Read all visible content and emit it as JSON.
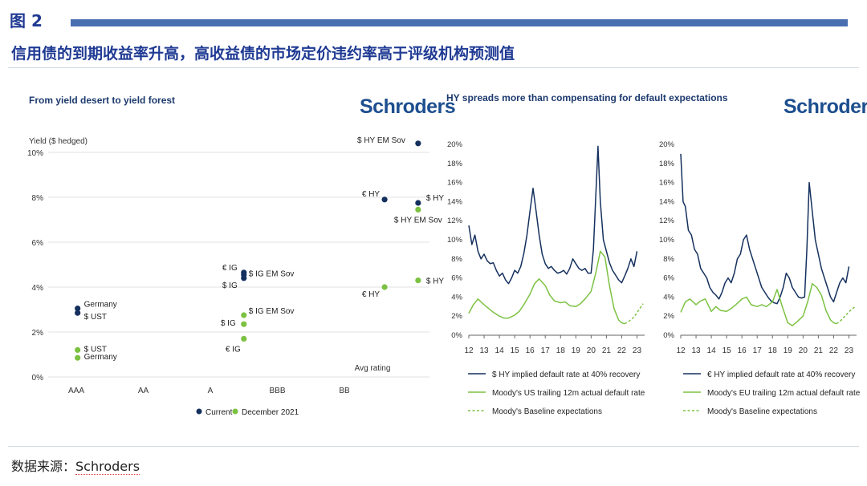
{
  "header": {
    "figure_label": "图 2",
    "headline": "信用债的到期收益率升高，高收益债的市场定价违约率高于评级机构预测值"
  },
  "footer": {
    "source_prefix": "数据来源：",
    "source_name": "Schroders"
  },
  "colors": {
    "navy": "#15305e",
    "green": "#7cc242",
    "title_blue": "#1f3a93",
    "bar_blue": "#4a6fb0"
  },
  "chart_data": [
    {
      "type": "scatter",
      "title": "From yield desert to yield forest",
      "brand": "Schroders",
      "ylabel": "Yield ($ hedged)",
      "xlabel": "Avg rating",
      "categories": [
        "AAA",
        "AA",
        "A",
        "BBB",
        "BB"
      ],
      "ylim": [
        0,
        10
      ],
      "yticks": [
        "0%",
        "2%",
        "4%",
        "6%",
        "8%",
        "10%"
      ],
      "grid": true,
      "legend": {
        "position": "bottom",
        "entries": [
          "Current",
          "December 2021"
        ]
      },
      "series": [
        {
          "name": "Current",
          "points": [
            {
              "label": "Germany",
              "x": 0.02,
              "y": 3.05
            },
            {
              "label": "$ UST",
              "x": 0.02,
              "y": 2.85
            },
            {
              "label": "€ IG",
              "x": 2.5,
              "y": 4.65
            },
            {
              "label": "$ IG EM Sov",
              "x": 2.5,
              "y": 4.55
            },
            {
              "label": "$ IG",
              "x": 2.5,
              "y": 4.4
            },
            {
              "label": "$ HY EM Sov",
              "x": 5.1,
              "y": 10.4
            },
            {
              "label": "€ HY",
              "x": 4.6,
              "y": 7.9
            },
            {
              "label": "$ HY",
              "x": 5.1,
              "y": 7.75
            }
          ]
        },
        {
          "name": "December 2021",
          "points": [
            {
              "label": "$ UST",
              "x": 0.02,
              "y": 1.2
            },
            {
              "label": "Germany",
              "x": 0.02,
              "y": 0.85
            },
            {
              "label": "$ IG EM Sov",
              "x": 2.5,
              "y": 2.75
            },
            {
              "label": "$ IG",
              "x": 2.5,
              "y": 2.35
            },
            {
              "label": "€ IG",
              "x": 2.5,
              "y": 1.7
            },
            {
              "label": "$ HY EM Sov",
              "x": 5.1,
              "y": 7.45
            },
            {
              "label": "€ HY",
              "x": 4.6,
              "y": 4.0
            },
            {
              "label": "$ HY",
              "x": 5.1,
              "y": 4.3
            }
          ]
        }
      ]
    },
    {
      "type": "line",
      "title": "HY spreads more than compensating for default expectations",
      "brand": "Schroders",
      "xlim": [
        2012,
        2023.5
      ],
      "xticks": [
        "12",
        "13",
        "14",
        "15",
        "16",
        "17",
        "18",
        "19",
        "20",
        "21",
        "22",
        "23"
      ],
      "ylim": [
        0,
        20
      ],
      "yticks": [
        "0%",
        "2%",
        "4%",
        "6%",
        "8%",
        "10%",
        "12%",
        "14%",
        "16%",
        "18%",
        "20%"
      ],
      "series": [
        {
          "name": "$ HY implied default rate at 40% recovery",
          "style": "solid",
          "color": "#15305e",
          "x": [
            2012.0,
            2012.2,
            2012.4,
            2012.6,
            2012.8,
            2013.0,
            2013.2,
            2013.4,
            2013.6,
            2013.8,
            2014.0,
            2014.2,
            2014.4,
            2014.6,
            2014.8,
            2015.0,
            2015.2,
            2015.4,
            2015.6,
            2015.8,
            2016.0,
            2016.2,
            2016.4,
            2016.6,
            2016.8,
            2017.0,
            2017.2,
            2017.4,
            2017.6,
            2017.8,
            2018.0,
            2018.2,
            2018.4,
            2018.6,
            2018.8,
            2019.0,
            2019.2,
            2019.4,
            2019.6,
            2019.8,
            2020.0,
            2020.15,
            2020.3,
            2020.45,
            2020.6,
            2020.8,
            2021.0,
            2021.2,
            2021.4,
            2021.6,
            2021.8,
            2022.0,
            2022.2,
            2022.4,
            2022.6,
            2022.8,
            2023.0
          ],
          "y": [
            11.5,
            9.5,
            10.5,
            8.8,
            8.0,
            8.5,
            7.8,
            7.5,
            7.6,
            6.8,
            6.2,
            6.5,
            5.8,
            5.4,
            6.0,
            6.8,
            6.5,
            7.2,
            8.6,
            10.5,
            13.0,
            15.4,
            13.0,
            10.5,
            8.5,
            7.5,
            7.0,
            7.2,
            6.8,
            6.5,
            6.6,
            6.8,
            6.4,
            7.0,
            8.0,
            7.5,
            7.0,
            6.8,
            7.0,
            6.5,
            6.5,
            9.0,
            14.5,
            19.8,
            14.0,
            10.0,
            8.8,
            7.6,
            6.8,
            6.3,
            5.8,
            5.5,
            6.2,
            7.0,
            8.0,
            7.2,
            8.8
          ]
        },
        {
          "name": "Moody's US trailing 12m actual default rate",
          "style": "solid",
          "color": "#7cc242",
          "x": [
            2012.0,
            2012.3,
            2012.6,
            2013.0,
            2013.3,
            2013.6,
            2014.0,
            2014.3,
            2014.6,
            2015.0,
            2015.3,
            2015.6,
            2016.0,
            2016.3,
            2016.6,
            2017.0,
            2017.3,
            2017.6,
            2018.0,
            2018.3,
            2018.6,
            2019.0,
            2019.3,
            2019.6,
            2020.0,
            2020.3,
            2020.6,
            2020.9,
            2021.2,
            2021.5,
            2021.8,
            2022.0,
            2022.2
          ],
          "y": [
            2.3,
            3.2,
            3.8,
            3.2,
            2.8,
            2.4,
            2.0,
            1.8,
            1.8,
            2.1,
            2.5,
            3.2,
            4.3,
            5.4,
            5.9,
            5.2,
            4.2,
            3.6,
            3.4,
            3.5,
            3.1,
            3.0,
            3.3,
            3.8,
            4.6,
            6.5,
            8.8,
            8.2,
            5.2,
            2.8,
            1.6,
            1.3,
            1.2
          ]
        },
        {
          "name": "Moody's Baseline expectations",
          "style": "dashed",
          "color": "#7cc242",
          "x": [
            2022.2,
            2022.5,
            2022.8,
            2023.1,
            2023.4
          ],
          "y": [
            1.2,
            1.5,
            1.9,
            2.6,
            3.3
          ]
        }
      ]
    },
    {
      "type": "line",
      "xlim": [
        2012,
        2023.5
      ],
      "xticks": [
        "12",
        "13",
        "14",
        "15",
        "16",
        "17",
        "18",
        "19",
        "20",
        "21",
        "22",
        "23"
      ],
      "ylim": [
        0,
        20
      ],
      "yticks": [
        "0%",
        "2%",
        "4%",
        "6%",
        "8%",
        "10%",
        "12%",
        "14%",
        "16%",
        "18%",
        "20%"
      ],
      "series": [
        {
          "name": "€ HY implied default rate at 40% recovery",
          "style": "solid",
          "color": "#15305e",
          "x": [
            2012.0,
            2012.15,
            2012.3,
            2012.5,
            2012.7,
            2012.9,
            2013.1,
            2013.3,
            2013.5,
            2013.7,
            2013.9,
            2014.1,
            2014.3,
            2014.5,
            2014.7,
            2014.9,
            2015.1,
            2015.3,
            2015.5,
            2015.7,
            2015.9,
            2016.1,
            2016.3,
            2016.5,
            2016.7,
            2016.9,
            2017.1,
            2017.3,
            2017.5,
            2017.7,
            2017.9,
            2018.1,
            2018.3,
            2018.5,
            2018.7,
            2018.9,
            2019.1,
            2019.3,
            2019.5,
            2019.7,
            2019.9,
            2020.1,
            2020.25,
            2020.4,
            2020.6,
            2020.8,
            2021.0,
            2021.2,
            2021.4,
            2021.6,
            2021.8,
            2022.0,
            2022.2,
            2022.4,
            2022.6,
            2022.8,
            2023.0
          ],
          "y": [
            19.0,
            14.0,
            13.5,
            11.0,
            10.5,
            9.0,
            8.5,
            7.0,
            6.5,
            6.0,
            5.0,
            4.5,
            4.2,
            3.8,
            4.5,
            5.5,
            6.0,
            5.5,
            6.5,
            8.0,
            8.5,
            10.0,
            10.5,
            9.0,
            8.0,
            7.0,
            6.0,
            5.0,
            4.5,
            4.0,
            3.6,
            3.4,
            3.3,
            4.0,
            5.0,
            6.5,
            6.0,
            5.0,
            4.5,
            4.0,
            3.9,
            4.0,
            9.0,
            16.0,
            13.0,
            10.0,
            8.5,
            7.0,
            6.0,
            5.0,
            4.0,
            3.5,
            4.5,
            5.5,
            6.0,
            5.5,
            7.2
          ]
        },
        {
          "name": "Moody's EU trailing 12m actual default rate",
          "style": "solid",
          "color": "#7cc242",
          "x": [
            2012.0,
            2012.3,
            2012.6,
            2013.0,
            2013.3,
            2013.6,
            2014.0,
            2014.3,
            2014.6,
            2015.0,
            2015.3,
            2015.6,
            2016.0,
            2016.3,
            2016.6,
            2017.0,
            2017.3,
            2017.6,
            2018.0,
            2018.3,
            2018.6,
            2019.0,
            2019.3,
            2019.6,
            2020.0,
            2020.3,
            2020.6,
            2020.9,
            2021.2,
            2021.5,
            2021.8,
            2022.0,
            2022.2
          ],
          "y": [
            2.4,
            3.5,
            3.8,
            3.2,
            3.6,
            3.8,
            2.5,
            3.0,
            2.6,
            2.5,
            2.8,
            3.2,
            3.8,
            4.0,
            3.2,
            3.0,
            3.2,
            3.0,
            3.5,
            4.8,
            3.2,
            1.3,
            1.0,
            1.4,
            2.0,
            3.5,
            5.4,
            5.0,
            4.2,
            2.6,
            1.6,
            1.3,
            1.2
          ]
        },
        {
          "name": "Moody's Baseline expectations",
          "style": "dashed",
          "color": "#7cc242",
          "x": [
            2022.2,
            2022.5,
            2022.8,
            2023.1,
            2023.4
          ],
          "y": [
            1.2,
            1.6,
            2.1,
            2.6,
            3.0
          ]
        }
      ]
    }
  ]
}
